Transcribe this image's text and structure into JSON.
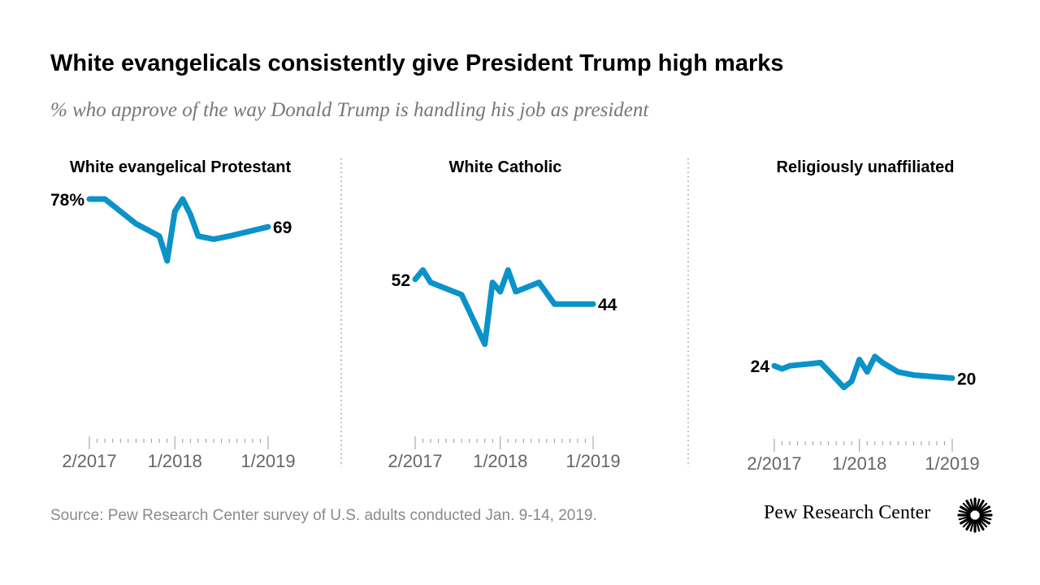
{
  "header": {
    "title": "White evangelicals consistently give President Trump high marks",
    "subtitle": "% who approve of the way Donald Trump is handling his job as president"
  },
  "footer": {
    "source": "Source: Pew Research Center survey of U.S. adults conducted Jan. 9-14, 2019.",
    "brand": "Pew Research Center",
    "logo_icon": "pew-sunburst-icon"
  },
  "colors": {
    "line": "#0b93c9",
    "tick": "#999999",
    "divider": "#9a9a9a"
  },
  "chart_data": [
    {
      "type": "line",
      "title": "White evangelical Protestant",
      "x_ticks": [
        "2/2017",
        "1/2018",
        "1/2019"
      ],
      "start_label": "78%",
      "end_label": "69",
      "series": [
        {
          "x": [
            "2/2017",
            "3/2017",
            "4/2017",
            "6/2017",
            "8/2017",
            "11/2017",
            "12/2017",
            "1/2018",
            "2/2018",
            "3/2018",
            "4/2018",
            "6/2018",
            "8/2018",
            "1/2019"
          ],
          "values": [
            78,
            78,
            78,
            74,
            70,
            66,
            58,
            74,
            78,
            73,
            66,
            65,
            66,
            69
          ]
        }
      ]
    },
    {
      "type": "line",
      "title": "White Catholic",
      "x_ticks": [
        "2/2017",
        "1/2018",
        "1/2019"
      ],
      "start_label": "52",
      "end_label": "44",
      "series": [
        {
          "x": [
            "2/2017",
            "3/2017",
            "4/2017",
            "6/2017",
            "8/2017",
            "11/2017",
            "12/2017",
            "1/2018",
            "2/2018",
            "3/2018",
            "4/2018",
            "6/2018",
            "8/2018",
            "1/2019"
          ],
          "values": [
            52,
            55,
            51,
            49,
            47,
            31,
            51,
            48,
            55,
            48,
            49,
            51,
            44,
            44
          ]
        }
      ]
    },
    {
      "type": "line",
      "title": "Religiously unaffiliated",
      "x_ticks": [
        "2/2017",
        "1/2018",
        "1/2019"
      ],
      "start_label": "24",
      "end_label": "20",
      "series": [
        {
          "x": [
            "2/2017",
            "3/2017",
            "4/2017",
            "6/2017",
            "8/2017",
            "11/2017",
            "12/2017",
            "1/2018",
            "2/2018",
            "3/2018",
            "4/2018",
            "6/2018",
            "8/2018",
            "1/2019"
          ],
          "values": [
            24,
            23,
            24,
            24.5,
            25,
            17,
            19,
            26,
            22,
            27,
            25,
            22,
            21,
            20
          ]
        }
      ]
    }
  ]
}
